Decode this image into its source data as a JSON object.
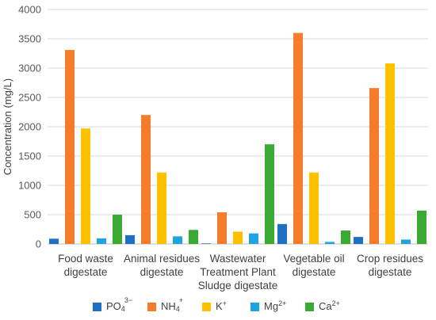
{
  "chart_data": {
    "type": "bar",
    "title": "",
    "xlabel": "",
    "ylabel": "Concentration (mg/L)",
    "ylim": [
      0,
      4000
    ],
    "ytick_step": 500,
    "grid": true,
    "legend_position": "bottom",
    "categories": [
      [
        "Food waste",
        "digestate"
      ],
      [
        "Animal residues",
        "digestate"
      ],
      [
        "Wastewater",
        "Treatment Plant",
        "Sludge digestate"
      ],
      [
        "Vegetable oil",
        "digestate"
      ],
      [
        "Crop residues",
        "digestate"
      ]
    ],
    "series": [
      {
        "name": "PO4 3−",
        "label_base": "PO",
        "label_sub": "4",
        "label_sup": "3−",
        "color": "#1f6fc5",
        "values": [
          90,
          150,
          10,
          340,
          120
        ]
      },
      {
        "name": "NH4 +",
        "label_base": "NH",
        "label_sub": "4",
        "label_sup": "+",
        "color": "#f47c2c",
        "values": [
          3310,
          2200,
          540,
          3600,
          2660
        ]
      },
      {
        "name": "K +",
        "label_base": "K",
        "label_sub": "",
        "label_sup": "+",
        "color": "#ffc000",
        "values": [
          1970,
          1220,
          210,
          1220,
          3080
        ]
      },
      {
        "name": "Mg 2+",
        "label_base": "Mg",
        "label_sub": "",
        "label_sup": "2+",
        "color": "#1fa4e0",
        "values": [
          95,
          130,
          180,
          35,
          75
        ]
      },
      {
        "name": "Ca 2+",
        "label_base": "Ca",
        "label_sub": "",
        "label_sup": "2+",
        "color": "#3aaa35",
        "values": [
          500,
          240,
          1700,
          230,
          570
        ]
      }
    ]
  }
}
